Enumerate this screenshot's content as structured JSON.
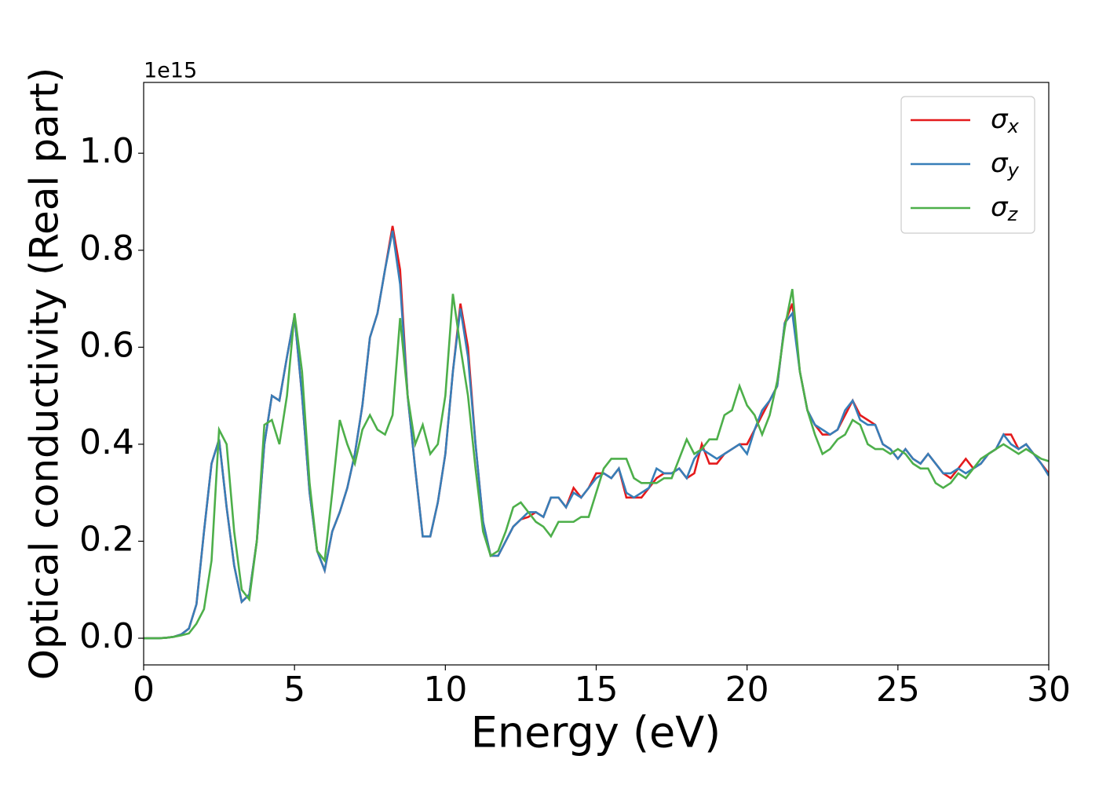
{
  "chart_data": {
    "type": "line",
    "ylabel": "Optical conductivity (Real part)",
    "xlabel": "Energy (eV)",
    "y_offset_label": "1e15",
    "xlim": [
      0,
      30
    ],
    "xticks": [
      0,
      5,
      10,
      15,
      20,
      25,
      30
    ],
    "ylim": [
      -0.055,
      1.146
    ],
    "yticks": [
      {
        "value": 0,
        "label": "0.0"
      },
      0.2,
      0.4,
      0.6,
      0.8,
      {
        "value": 1,
        "label": "1.0"
      }
    ],
    "grid": false,
    "legend": "upper right",
    "x": [
      0,
      0.25,
      0.5,
      0.75,
      1,
      1.25,
      1.5,
      1.75,
      2,
      2.25,
      2.5,
      2.75,
      3,
      3.25,
      3.5,
      3.75,
      4,
      4.25,
      4.5,
      4.75,
      5,
      5.25,
      5.5,
      5.75,
      6,
      6.25,
      6.5,
      6.75,
      7,
      7.25,
      7.5,
      7.75,
      8,
      8.25,
      8.5,
      8.75,
      9,
      9.25,
      9.5,
      9.75,
      10,
      10.25,
      10.5,
      10.75,
      11,
      11.25,
      11.5,
      11.75,
      12,
      12.25,
      12.5,
      12.75,
      13,
      13.25,
      13.5,
      13.75,
      14,
      14.25,
      14.5,
      14.75,
      15,
      15.25,
      15.5,
      15.75,
      16,
      16.25,
      16.5,
      16.75,
      17,
      17.25,
      17.5,
      17.75,
      18,
      18.25,
      18.5,
      18.75,
      19,
      19.25,
      19.5,
      19.75,
      20,
      20.25,
      20.5,
      20.75,
      21,
      21.25,
      21.5,
      21.75,
      22,
      22.25,
      22.5,
      22.75,
      23,
      23.25,
      23.5,
      23.75,
      24,
      24.25,
      24.5,
      24.75,
      25,
      25.25,
      25.5,
      25.75,
      26,
      26.25,
      26.5,
      26.75,
      27,
      27.25,
      27.5,
      27.75,
      28,
      28.25,
      28.5,
      28.75,
      29,
      29.25,
      29.5,
      29.75,
      30
    ],
    "series": [
      {
        "name": "σx",
        "color": "#e41a1c",
        "values": [
          0,
          0,
          0,
          0.001,
          0.003,
          0.008,
          0.02,
          0.07,
          0.22,
          0.36,
          0.41,
          0.27,
          0.15,
          0.075,
          0.09,
          0.2,
          0.4,
          0.5,
          0.49,
          0.58,
          0.665,
          0.5,
          0.3,
          0.18,
          0.14,
          0.22,
          0.26,
          0.31,
          0.38,
          0.48,
          0.62,
          0.67,
          0.76,
          0.85,
          0.76,
          0.5,
          0.35,
          0.21,
          0.21,
          0.28,
          0.38,
          0.55,
          0.69,
          0.6,
          0.4,
          0.24,
          0.17,
          0.17,
          0.2,
          0.23,
          0.245,
          0.25,
          0.26,
          0.25,
          0.29,
          0.29,
          0.27,
          0.31,
          0.29,
          0.31,
          0.34,
          0.34,
          0.33,
          0.35,
          0.29,
          0.29,
          0.29,
          0.31,
          0.33,
          0.34,
          0.34,
          0.35,
          0.33,
          0.34,
          0.4,
          0.36,
          0.36,
          0.38,
          0.39,
          0.4,
          0.4,
          0.43,
          0.46,
          0.49,
          0.52,
          0.65,
          0.69,
          0.55,
          0.47,
          0.44,
          0.42,
          0.42,
          0.43,
          0.46,
          0.49,
          0.46,
          0.45,
          0.44,
          0.4,
          0.39,
          0.37,
          0.39,
          0.37,
          0.36,
          0.38,
          0.36,
          0.34,
          0.33,
          0.35,
          0.37,
          0.35,
          0.36,
          0.38,
          0.39,
          0.42,
          0.42,
          0.39,
          0.4,
          0.38,
          0.36,
          0.34
        ]
      },
      {
        "name": "σy",
        "color": "#377eb8",
        "values": [
          0,
          0,
          0,
          0.001,
          0.003,
          0.008,
          0.02,
          0.07,
          0.22,
          0.36,
          0.41,
          0.27,
          0.15,
          0.075,
          0.09,
          0.2,
          0.4,
          0.5,
          0.49,
          0.58,
          0.665,
          0.5,
          0.3,
          0.18,
          0.14,
          0.22,
          0.26,
          0.31,
          0.38,
          0.48,
          0.62,
          0.67,
          0.76,
          0.84,
          0.73,
          0.5,
          0.35,
          0.21,
          0.21,
          0.28,
          0.38,
          0.55,
          0.68,
          0.58,
          0.4,
          0.24,
          0.17,
          0.17,
          0.2,
          0.23,
          0.245,
          0.26,
          0.26,
          0.25,
          0.29,
          0.29,
          0.27,
          0.3,
          0.29,
          0.31,
          0.33,
          0.34,
          0.33,
          0.35,
          0.3,
          0.29,
          0.3,
          0.31,
          0.35,
          0.34,
          0.34,
          0.35,
          0.33,
          0.37,
          0.39,
          0.38,
          0.37,
          0.38,
          0.39,
          0.4,
          0.38,
          0.43,
          0.47,
          0.49,
          0.52,
          0.65,
          0.67,
          0.55,
          0.47,
          0.44,
          0.43,
          0.42,
          0.43,
          0.47,
          0.49,
          0.45,
          0.44,
          0.44,
          0.4,
          0.39,
          0.37,
          0.39,
          0.37,
          0.36,
          0.38,
          0.36,
          0.34,
          0.34,
          0.35,
          0.34,
          0.35,
          0.36,
          0.38,
          0.39,
          0.42,
          0.4,
          0.39,
          0.4,
          0.38,
          0.36,
          0.335
        ]
      },
      {
        "name": "σz",
        "color": "#4daf4a",
        "values": [
          0,
          0,
          0,
          0.001,
          0.003,
          0.006,
          0.01,
          0.03,
          0.06,
          0.16,
          0.43,
          0.4,
          0.22,
          0.1,
          0.08,
          0.2,
          0.44,
          0.45,
          0.4,
          0.5,
          0.67,
          0.55,
          0.32,
          0.18,
          0.16,
          0.3,
          0.45,
          0.4,
          0.36,
          0.43,
          0.46,
          0.43,
          0.42,
          0.46,
          0.66,
          0.5,
          0.4,
          0.44,
          0.38,
          0.4,
          0.5,
          0.71,
          0.6,
          0.5,
          0.35,
          0.22,
          0.17,
          0.18,
          0.22,
          0.27,
          0.28,
          0.26,
          0.24,
          0.23,
          0.21,
          0.24,
          0.24,
          0.24,
          0.25,
          0.25,
          0.3,
          0.35,
          0.37,
          0.37,
          0.37,
          0.33,
          0.32,
          0.32,
          0.32,
          0.33,
          0.33,
          0.37,
          0.41,
          0.38,
          0.39,
          0.41,
          0.41,
          0.46,
          0.47,
          0.52,
          0.48,
          0.46,
          0.42,
          0.46,
          0.53,
          0.64,
          0.72,
          0.55,
          0.47,
          0.42,
          0.38,
          0.39,
          0.41,
          0.42,
          0.45,
          0.44,
          0.4,
          0.39,
          0.39,
          0.38,
          0.39,
          0.38,
          0.36,
          0.35,
          0.35,
          0.32,
          0.31,
          0.32,
          0.34,
          0.33,
          0.35,
          0.37,
          0.38,
          0.39,
          0.4,
          0.39,
          0.38,
          0.39,
          0.38,
          0.37,
          0.365
        ]
      }
    ]
  }
}
